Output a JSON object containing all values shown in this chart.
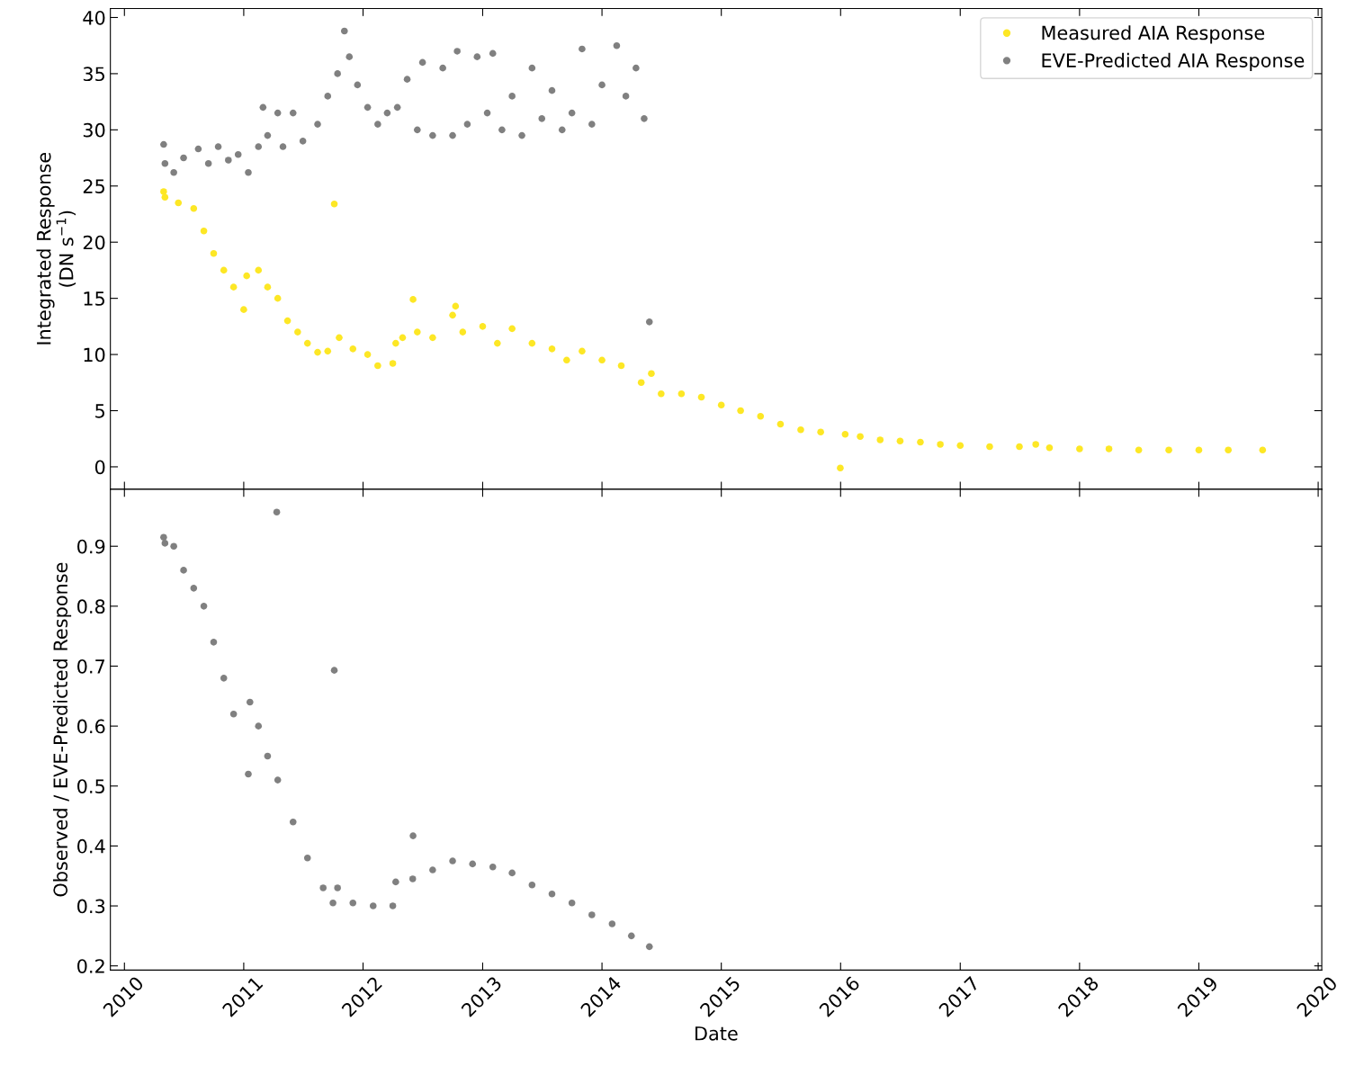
{
  "chart_data": [
    {
      "type": "scatter",
      "ylabel": "Integrated Response\n(DN s$^{−1}$)",
      "xlim": [
        "2009-11-19",
        "2020-01-12"
      ],
      "xticks": [
        {
          "value": "2010-01-01",
          "label": null
        },
        {
          "value": "2011-01-01",
          "label": null
        },
        {
          "value": "2012-01-01",
          "label": null
        },
        {
          "value": "2013-01-01",
          "label": null
        },
        {
          "value": "2014-01-01",
          "label": null
        },
        {
          "value": "2015-01-01",
          "label": null
        },
        {
          "value": "2016-01-01",
          "label": null
        },
        {
          "value": "2017-01-01",
          "label": null
        },
        {
          "value": "2018-01-01",
          "label": null
        },
        {
          "value": "2019-01-01",
          "label": null
        },
        {
          "value": "2020-01-01",
          "label": null
        }
      ],
      "ylim": [
        -2,
        40.8
      ],
      "yticks": [
        0,
        5,
        10,
        15,
        20,
        25,
        30,
        35,
        40
      ],
      "tick_labels": "y",
      "legend": "top right",
      "marker": "circle",
      "grid": false,
      "series": [
        {
          "name": "Measured AIA Response",
          "color": "#fde725",
          "x": [
            "2010-05-01",
            "2010-05-05",
            "2010-06-15",
            "2010-08-01",
            "2010-09-01",
            "2010-10-01",
            "2010-11-01",
            "2010-12-01",
            "2011-01-01",
            "2011-01-10",
            "2011-02-15",
            "2011-03-15",
            "2011-04-15",
            "2011-05-15",
            "2011-06-15",
            "2011-07-15",
            "2011-08-15",
            "2011-09-15",
            "2011-10-05",
            "2011-10-20",
            "2011-12-01",
            "2012-01-15",
            "2012-02-15",
            "2012-04-01",
            "2012-04-10",
            "2012-05-01",
            "2012-06-02",
            "2012-06-15",
            "2012-08-01",
            "2012-10-01",
            "2012-10-10",
            "2012-11-01",
            "2013-01-01",
            "2013-02-15",
            "2013-04-01",
            "2013-06-01",
            "2013-08-01",
            "2013-09-15",
            "2013-11-01",
            "2014-01-01",
            "2014-03-01",
            "2014-05-01",
            "2014-06-01",
            "2014-07-01",
            "2014-09-01",
            "2014-11-01",
            "2015-01-01",
            "2015-03-01",
            "2015-05-01",
            "2015-07-01",
            "2015-09-01",
            "2015-11-01",
            "2015-12-31",
            "2016-01-15",
            "2016-03-01",
            "2016-05-01",
            "2016-07-01",
            "2016-09-01",
            "2016-11-01",
            "2017-01-01",
            "2017-04-01",
            "2017-07-01",
            "2017-08-20",
            "2017-10-01",
            "2018-01-01",
            "2018-04-01",
            "2018-07-01",
            "2018-10-01",
            "2019-01-01",
            "2019-04-01",
            "2019-07-15"
          ],
          "values": [
            24.5,
            24,
            23.5,
            23,
            21,
            19,
            17.5,
            16,
            14,
            17,
            17.5,
            16,
            15,
            13,
            12,
            11,
            10.2,
            10.3,
            23.4,
            11.5,
            10.5,
            10,
            9,
            9.2,
            11,
            11.5,
            14.9,
            12,
            11.5,
            13.5,
            14.3,
            12,
            12.5,
            11,
            12.3,
            11,
            10.5,
            9.5,
            10.3,
            9.5,
            9,
            7.5,
            8.3,
            6.5,
            6.5,
            6.2,
            5.5,
            5,
            4.5,
            3.8,
            3.3,
            3.1,
            -0.1,
            2.9,
            2.7,
            2.4,
            2.3,
            2.2,
            2,
            1.9,
            1.8,
            1.8,
            2,
            1.7,
            1.6,
            1.6,
            1.5,
            1.5,
            1.5,
            1.5,
            1.5
          ]
        },
        {
          "name": "EVE-Predicted AIA Response",
          "color": "#808080",
          "x": [
            "2010-05-01",
            "2010-05-05",
            "2010-06-01",
            "2010-07-01",
            "2010-08-15",
            "2010-09-15",
            "2010-10-15",
            "2010-11-15",
            "2010-12-15",
            "2011-01-15",
            "2011-02-15",
            "2011-03-01",
            "2011-03-15",
            "2011-04-15",
            "2011-05-01",
            "2011-06-01",
            "2011-07-01",
            "2011-08-15",
            "2011-09-15",
            "2011-10-15",
            "2011-11-05",
            "2011-11-20",
            "2011-12-15",
            "2012-01-15",
            "2012-02-15",
            "2012-03-15",
            "2012-04-15",
            "2012-05-15",
            "2012-06-15",
            "2012-07-01",
            "2012-08-01",
            "2012-09-01",
            "2012-10-01",
            "2012-10-15",
            "2012-11-15",
            "2012-12-15",
            "2013-01-15",
            "2013-02-01",
            "2013-03-01",
            "2013-04-01",
            "2013-05-01",
            "2013-06-01",
            "2013-07-01",
            "2013-08-01",
            "2013-09-01",
            "2013-10-01",
            "2013-11-01",
            "2013-12-01",
            "2014-01-01",
            "2014-02-15",
            "2014-03-15",
            "2014-04-15",
            "2014-05-10",
            "2014-05-26"
          ],
          "values": [
            28.7,
            27,
            26.2,
            27.5,
            28.3,
            27,
            28.5,
            27.3,
            27.8,
            26.2,
            28.5,
            32,
            29.5,
            31.5,
            28.5,
            31.5,
            29,
            30.5,
            33,
            35,
            38.8,
            36.5,
            34,
            32,
            30.5,
            31.5,
            32,
            34.5,
            30,
            36,
            29.5,
            35.5,
            29.5,
            37,
            30.5,
            36.5,
            31.5,
            36.8,
            30,
            33,
            29.5,
            35.5,
            31,
            33.5,
            30,
            31.5,
            37.2,
            30.5,
            34,
            37.5,
            33,
            35.5,
            31,
            12.9
          ]
        }
      ]
    },
    {
      "type": "scatter",
      "xlabel": "Date",
      "ylabel": "Observed / EVE-Predicted Response",
      "xlim": [
        "2009-11-19",
        "2020-01-12"
      ],
      "xticks": [
        {
          "value": "2010-01-01",
          "label": "2010"
        },
        {
          "value": "2011-01-01",
          "label": "2011"
        },
        {
          "value": "2012-01-01",
          "label": "2012"
        },
        {
          "value": "2013-01-01",
          "label": "2013"
        },
        {
          "value": "2014-01-01",
          "label": "2014"
        },
        {
          "value": "2015-01-01",
          "label": "2015"
        },
        {
          "value": "2016-01-01",
          "label": "2016"
        },
        {
          "value": "2017-01-01",
          "label": "2017"
        },
        {
          "value": "2018-01-01",
          "label": "2018"
        },
        {
          "value": "2019-01-01",
          "label": "2019"
        },
        {
          "value": "2020-01-01",
          "label": "2020"
        }
      ],
      "ylim": [
        0.193,
        0.995
      ],
      "yticks": [
        0.2,
        0.3,
        0.4,
        0.5,
        0.6,
        0.7,
        0.8,
        0.9
      ],
      "marker": "circle",
      "grid": false,
      "legend": false,
      "series": [
        {
          "color": "#808080",
          "x": [
            "2010-05-01",
            "2010-05-05",
            "2010-06-01",
            "2010-07-01",
            "2010-08-01",
            "2010-09-01",
            "2010-10-01",
            "2010-11-01",
            "2010-12-01",
            "2011-01-15",
            "2011-01-20",
            "2011-02-15",
            "2011-03-15",
            "2011-04-12",
            "2011-04-15",
            "2011-06-01",
            "2011-07-15",
            "2011-09-01",
            "2011-10-01",
            "2011-10-05",
            "2011-10-15",
            "2011-12-01",
            "2012-02-01",
            "2012-04-01",
            "2012-04-10",
            "2012-06-01",
            "2012-06-02",
            "2012-08-01",
            "2012-10-01",
            "2012-12-01",
            "2013-02-01",
            "2013-04-01",
            "2013-06-01",
            "2013-08-01",
            "2013-10-01",
            "2013-12-01",
            "2014-02-01",
            "2014-04-01",
            "2014-05-26"
          ],
          "values": [
            0.915,
            0.905,
            0.9,
            0.86,
            0.83,
            0.8,
            0.74,
            0.68,
            0.62,
            0.52,
            0.64,
            0.6,
            0.55,
            0.957,
            0.51,
            0.44,
            0.38,
            0.33,
            0.305,
            0.693,
            0.33,
            0.305,
            0.3,
            0.3,
            0.34,
            0.345,
            0.417,
            0.36,
            0.375,
            0.37,
            0.365,
            0.355,
            0.335,
            0.32,
            0.305,
            0.285,
            0.27,
            0.25,
            0.232
          ]
        }
      ]
    }
  ]
}
